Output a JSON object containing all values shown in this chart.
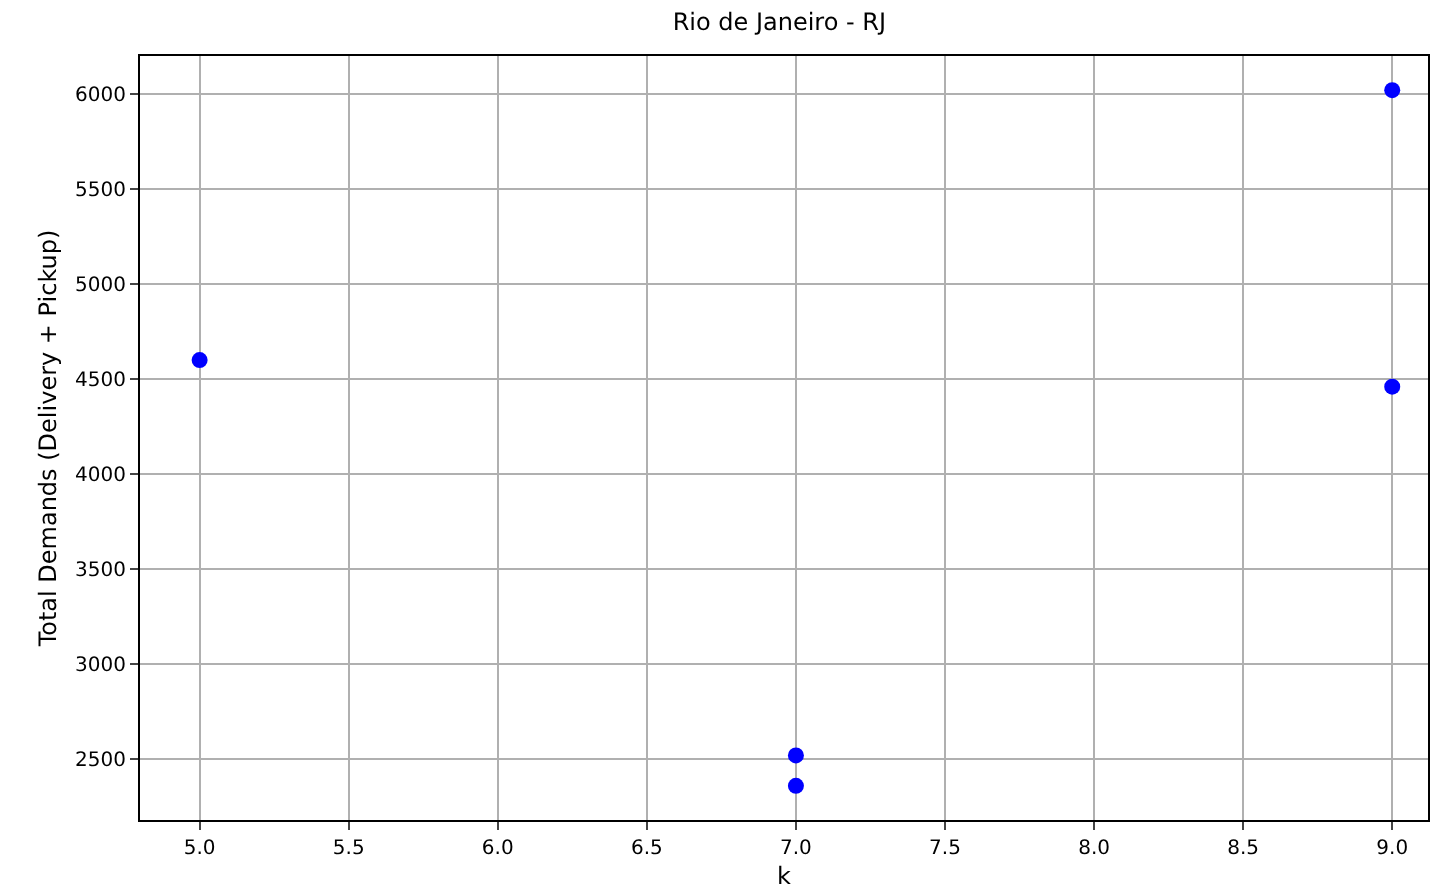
{
  "chart_data": {
    "type": "scatter",
    "title": "Rio de Janeiro - RJ",
    "xlabel": "k",
    "ylabel": "Total Demands (Delivery + Pickup)",
    "x": [
      5,
      7,
      7,
      9,
      9
    ],
    "series": [
      {
        "color": "#0000ff",
        "values": [
          4600,
          2520,
          2360,
          6020,
          4460
        ]
      }
    ],
    "xlim": [
      4.8,
      9.12
    ],
    "xticks": [
      {
        "value": 5,
        "label": "5.0"
      },
      {
        "value": 5.5,
        "label": "5.5"
      },
      {
        "value": 6,
        "label": "6.0"
      },
      {
        "value": 6.5,
        "label": "6.5"
      },
      {
        "value": 7,
        "label": "7.0"
      },
      {
        "value": 7.5,
        "label": "7.5"
      },
      {
        "value": 8,
        "label": "8.0"
      },
      {
        "value": 8.5,
        "label": "8.5"
      },
      {
        "value": 9,
        "label": "9.0"
      }
    ],
    "ylim": [
      2180,
      6200
    ],
    "yticks": [
      2500,
      3000,
      3500,
      4000,
      4500,
      5000,
      5500,
      6000
    ],
    "grid": true,
    "marker": "circle"
  }
}
